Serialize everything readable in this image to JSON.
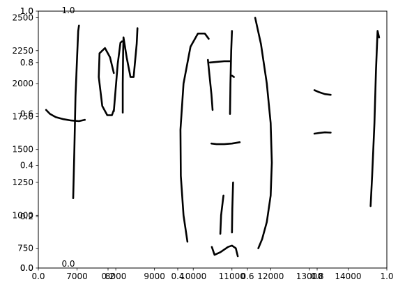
{
  "chart_data": {
    "type": "line",
    "axes": [
      {
        "role": "primary",
        "xlim": [
          6000,
          15000
        ],
        "ylim": [
          600,
          2550
        ],
        "x_ticks": [
          {
            "value": 7000,
            "label": "7000"
          },
          {
            "value": 8000,
            "label": "8000"
          },
          {
            "value": 9000,
            "label": "9000"
          },
          {
            "value": 10000,
            "label": "10000"
          },
          {
            "value": 11000,
            "label": "11000"
          },
          {
            "value": 12000,
            "label": "12000"
          },
          {
            "value": 13000,
            "label": "13000"
          },
          {
            "value": 14000,
            "label": "14000"
          }
        ],
        "y_ticks": [
          {
            "value": 750,
            "label": "750"
          },
          {
            "value": 1000,
            "label": "1000"
          },
          {
            "value": 1250,
            "label": "1250"
          },
          {
            "value": 1500,
            "label": "1500"
          },
          {
            "value": 1750,
            "label": "1750"
          },
          {
            "value": 2000,
            "label": "2000"
          },
          {
            "value": 2250,
            "label": "2250"
          },
          {
            "value": 2500,
            "label": "2500"
          }
        ]
      },
      {
        "role": "overlay",
        "xlim": [
          0.0,
          1.0
        ],
        "ylim": [
          0.0,
          1.0
        ],
        "x_ticks": [
          {
            "value": 0.0,
            "label": "0.0"
          },
          {
            "value": 0.2,
            "label": "0.2"
          },
          {
            "value": 0.4,
            "label": "0.4"
          },
          {
            "value": 0.6,
            "label": "0.6"
          },
          {
            "value": 0.8,
            "label": "0.8"
          },
          {
            "value": 1.0,
            "label": "1.0"
          }
        ],
        "y_ticks": [
          {
            "value": 0.0,
            "label": "0.0"
          },
          {
            "value": 0.2,
            "label": "0.2"
          },
          {
            "value": 0.4,
            "label": "0.4"
          },
          {
            "value": 0.6,
            "label": "0.6"
          },
          {
            "value": 0.8,
            "label": "0.8"
          },
          {
            "value": 1.0,
            "label": "1.0"
          }
        ]
      },
      {
        "role": "overlay",
        "xlim": [
          0.0,
          1.0
        ],
        "ylim": [
          0.0,
          1.0
        ],
        "x_ticks": [
          {
            "value": 0.0,
            "label": "0.0"
          },
          {
            "value": 1.0,
            "label": "1.0"
          }
        ],
        "y_ticks": [
          {
            "value": 0.0,
            "label": "0.0"
          },
          {
            "value": 1.0,
            "label": "1.0"
          }
        ],
        "inset": true
      }
    ],
    "stroke_color": "#000000",
    "strokes": [
      {
        "x": [
          6200,
          6300,
          6450,
          6650,
          6850,
          7050,
          7200
        ],
        "y": [
          1800,
          1770,
          1745,
          1730,
          1720,
          1715,
          1725
        ]
      },
      {
        "x": [
          6900,
          6930,
          6960,
          7000,
          7030,
          7050
        ],
        "y": [
          1130,
          1500,
          1900,
          2200,
          2400,
          2440
        ]
      },
      {
        "x": [
          7950,
          7900,
          7780,
          7650,
          7560,
          7580,
          7720,
          7850,
          7950
        ],
        "y": [
          1800,
          1760,
          1760,
          1830,
          2050,
          2230,
          2270,
          2200,
          2080
        ]
      },
      {
        "x": [
          7950,
          8050,
          8120,
          8160
        ],
        "y": [
          1790,
          2150,
          2310,
          2320
        ]
      },
      {
        "x": [
          8180,
          8180,
          8190,
          8200
        ],
        "y": [
          1780,
          2000,
          2250,
          2350
        ]
      },
      {
        "x": [
          8200,
          8280,
          8380,
          8460,
          8540,
          8560
        ],
        "y": [
          2350,
          2200,
          2050,
          2050,
          2300,
          2420
        ]
      },
      {
        "x": [
          9850,
          9750,
          9680,
          9670,
          9750,
          9930,
          10120,
          10300,
          10400
        ],
        "y": [
          800,
          1000,
          1300,
          1650,
          2000,
          2280,
          2380,
          2380,
          2340
        ]
      },
      {
        "x": [
          10380,
          10420,
          10470,
          10500
        ],
        "y": [
          2180,
          2060,
          1920,
          1800
        ]
      },
      {
        "x": [
          10430,
          10600,
          10800,
          10950
        ],
        "y": [
          2160,
          2165,
          2170,
          2170
        ]
      },
      {
        "x": [
          10950,
          10960,
          10980,
          11000
        ],
        "y": [
          1770,
          2000,
          2250,
          2400
        ]
      },
      {
        "x": [
          11000,
          11050
        ],
        "y": [
          2060,
          2050
        ]
      },
      {
        "x": [
          10470,
          10600,
          10800,
          11000,
          11200
        ],
        "y": [
          1545,
          1540,
          1540,
          1545,
          1555
        ]
      },
      {
        "x": [
          10700,
          10720,
          10780
        ],
        "y": [
          860,
          1000,
          1150
        ]
      },
      {
        "x": [
          11000,
          11010,
          11030
        ],
        "y": [
          870,
          1050,
          1250
        ]
      },
      {
        "x": [
          10480,
          10550,
          10700,
          10900,
          11000,
          11100,
          11150
        ],
        "y": [
          760,
          700,
          720,
          760,
          770,
          750,
          690
        ]
      },
      {
        "x": [
          11600,
          11750,
          11900,
          12000,
          12030,
          12000,
          11900,
          11780,
          11680
        ],
        "y": [
          2500,
          2300,
          2000,
          1700,
          1400,
          1150,
          950,
          820,
          750
        ]
      },
      {
        "x": [
          13130,
          13250,
          13400,
          13550
        ],
        "y": [
          1950,
          1935,
          1920,
          1915
        ]
      },
      {
        "x": [
          13130,
          13250,
          13400,
          13550
        ],
        "y": [
          1620,
          1625,
          1630,
          1628
        ]
      },
      {
        "x": [
          14580,
          14620,
          14680,
          14720,
          14760,
          14800
        ],
        "y": [
          1070,
          1300,
          1700,
          2100,
          2400,
          2350
        ]
      }
    ]
  }
}
